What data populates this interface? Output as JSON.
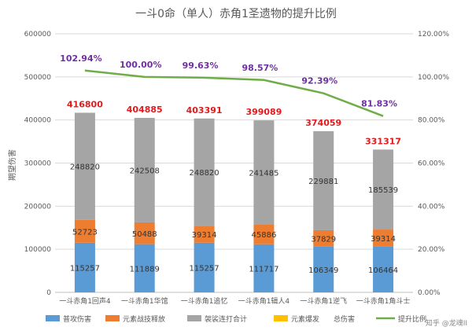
{
  "chart_data": {
    "type": "bar",
    "stacked": true,
    "title": "一斗0命（单人）赤角1圣遗物的提升比例",
    "ylabel": "期望伤害",
    "xlabel": "",
    "ylim": [
      0,
      600000
    ],
    "y2lim": [
      0,
      120
    ],
    "yticks": [
      "0",
      "100000",
      "200000",
      "300000",
      "400000",
      "500000",
      "600000"
    ],
    "y2ticks": [
      "0.00%",
      "20.00%",
      "40.00%",
      "60.00%",
      "80.00%",
      "100.00%",
      "120.00%"
    ],
    "categories": [
      "一斗赤角1回声4",
      "一斗赤角1华馆",
      "一斗赤角1追忆",
      "一斗赤角1辑人4",
      "一斗赤角1逆飞",
      "一斗赤角1角斗士"
    ],
    "series": [
      {
        "name": "普攻伤害",
        "color": "#5b9bd5",
        "values": [
          115257,
          111889,
          115257,
          111717,
          106349,
          106464
        ]
      },
      {
        "name": "元素战技释放",
        "color": "#ed7d31",
        "values": [
          52723,
          50488,
          39314,
          45886,
          37829,
          39314
        ]
      },
      {
        "name": "袈裟连打合计",
        "color": "#a5a5a5",
        "values": [
          248820,
          242508,
          248820,
          241485,
          229881,
          185539
        ]
      },
      {
        "name": "元素爆发",
        "color": "#ffc000",
        "values": [
          0,
          0,
          0,
          0,
          0,
          0
        ]
      }
    ],
    "totals_name": "总伤害",
    "totals": [
      416800,
      404885,
      403391,
      399089,
      374059,
      331317
    ],
    "line": {
      "name": "提升比例",
      "color": "#70ad47",
      "axis": "right",
      "values": [
        102.94,
        100.0,
        99.63,
        98.57,
        92.39,
        81.83
      ],
      "labels": [
        "102.94%",
        "100.00%",
        "99.63%",
        "98.57%",
        "92.39%",
        "81.83%"
      ]
    },
    "grid": true,
    "legend_position": "bottom"
  },
  "watermark": "知乎 @龙魂II"
}
